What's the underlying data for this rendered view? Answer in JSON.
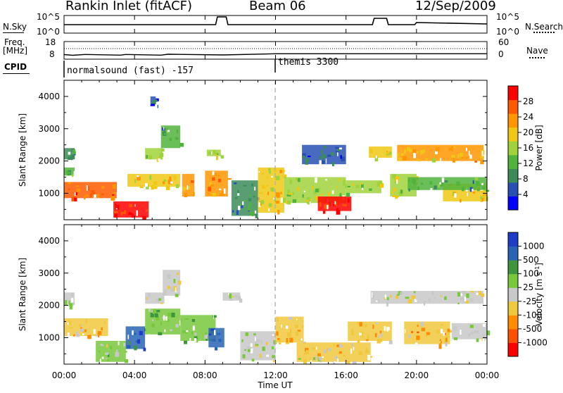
{
  "header": {
    "title": "Rankin Inlet (fitACF)",
    "beam": "Beam 06",
    "date": "12/Sep/2009"
  },
  "top_panel": {
    "left_label": "N.Sky",
    "right_label": "N.Search",
    "left_ticks": [
      "10^5",
      "10^0"
    ],
    "right_ticks": [
      "10^5",
      "10^0"
    ]
  },
  "freq_panel": {
    "label_line1": "Freq.",
    "label_line2": "[MHz]",
    "left_ticks": [
      "18",
      "8"
    ],
    "right_ticks": [
      "60",
      "0"
    ],
    "right_label": "Nave"
  },
  "cpid": {
    "label": "CPID",
    "segments": [
      "normalsound (fast) -157",
      "themis 3300"
    ]
  },
  "axes": {
    "ylabel": "Slant Range [km]",
    "xlabel": "Time UT",
    "x_ticks": [
      "00:00",
      "04:00",
      "08:00",
      "12:00",
      "16:00",
      "20:00",
      "00:00"
    ],
    "y_ticks": [
      "1000",
      "2000",
      "3000",
      "4000"
    ]
  },
  "colors": {
    "power_scale": [
      "#0000ff",
      "#2850b4",
      "#3c8c5a",
      "#50b43c",
      "#a0d23c",
      "#f0c814",
      "#ff9600",
      "#ff5a00",
      "#ff0000"
    ],
    "velocity_scale": [
      "#ff0000",
      "#ff5000",
      "#ff8c00",
      "#f0c83c",
      "#c8c8c8",
      "#78c83c",
      "#3c963c",
      "#2864b4",
      "#1e3cc8"
    ],
    "dashed_line": "#b4b4b4"
  },
  "chart_data": [
    {
      "type": "heatmap",
      "name": "power",
      "ylabel": "Slant Range [km]",
      "xlabel": "Time UT",
      "xlim_hours": [
        0,
        24
      ],
      "ylim_km": [
        180,
        4500
      ],
      "colorbar": {
        "label": "Power [dB]",
        "ticks": [
          "4",
          "8",
          "12",
          "16",
          "20",
          "24",
          "28"
        ],
        "range": [
          0,
          30
        ]
      },
      "regions": [
        {
          "t": [
            0.0,
            0.6
          ],
          "r": [
            2050,
            2400
          ],
          "v": 8
        },
        {
          "t": [
            0.0,
            0.6
          ],
          "r": [
            1550,
            1800
          ],
          "v": 13
        },
        {
          "t": [
            0.0,
            3.0
          ],
          "r": [
            850,
            1350
          ],
          "v": 24
        },
        {
          "t": [
            2.8,
            4.8
          ],
          "r": [
            250,
            750
          ],
          "v": 28
        },
        {
          "t": [
            3.6,
            6.6
          ],
          "r": [
            1200,
            1600
          ],
          "v": 18
        },
        {
          "t": [
            4.6,
            5.6
          ],
          "r": [
            2050,
            2400
          ],
          "v": 16
        },
        {
          "t": [
            5.5,
            6.6
          ],
          "r": [
            2400,
            3100
          ],
          "v": 10
        },
        {
          "t": [
            4.9,
            5.2
          ],
          "r": [
            3700,
            4000
          ],
          "v": 6
        },
        {
          "t": [
            6.7,
            7.4
          ],
          "r": [
            900,
            1600
          ],
          "v": 20
        },
        {
          "t": [
            8.0,
            9.3
          ],
          "r": [
            900,
            1700
          ],
          "v": 22
        },
        {
          "t": [
            8.1,
            8.9
          ],
          "r": [
            2150,
            2350
          ],
          "v": 14
        },
        {
          "t": [
            9.5,
            11.0
          ],
          "r": [
            300,
            1400
          ],
          "v": 8
        },
        {
          "t": [
            11.0,
            12.5
          ],
          "r": [
            400,
            1800
          ],
          "v": 18
        },
        {
          "t": [
            12.5,
            16.0
          ],
          "r": [
            700,
            1500
          ],
          "v": 16
        },
        {
          "t": [
            14.4,
            16.3
          ],
          "r": [
            450,
            900
          ],
          "v": 28
        },
        {
          "t": [
            13.5,
            16.0
          ],
          "r": [
            1900,
            2500
          ],
          "v": 6
        },
        {
          "t": [
            16.0,
            18.0
          ],
          "r": [
            1000,
            1400
          ],
          "v": 14
        },
        {
          "t": [
            17.3,
            18.6
          ],
          "r": [
            2100,
            2450
          ],
          "v": 18
        },
        {
          "t": [
            18.5,
            20.0
          ],
          "r": [
            900,
            1600
          ],
          "v": 16
        },
        {
          "t": [
            18.9,
            23.8
          ],
          "r": [
            2000,
            2500
          ],
          "v": 20
        },
        {
          "t": [
            21.5,
            24.0
          ],
          "r": [
            750,
            1300
          ],
          "v": 18
        },
        {
          "t": [
            19.5,
            24.0
          ],
          "r": [
            1100,
            1500
          ],
          "v": 10
        }
      ]
    },
    {
      "type": "heatmap",
      "name": "velocity",
      "ylabel": "Slant Range [km]",
      "xlabel": "Time UT",
      "xlim_hours": [
        0,
        24
      ],
      "ylim_km": [
        180,
        4500
      ],
      "colorbar": {
        "label": "Velocity [m s^-1]",
        "ticks": [
          "-1000",
          "-500",
          "-100",
          "-25",
          "25",
          "100",
          "500",
          "1000"
        ],
        "range": [
          -1200,
          1200
        ]
      },
      "regions": [
        {
          "t": [
            0.0,
            0.6
          ],
          "r": [
            2000,
            2400
          ],
          "v": 0
        },
        {
          "t": [
            0.0,
            2.5
          ],
          "r": [
            1050,
            1600
          ],
          "v": -300
        },
        {
          "t": [
            1.8,
            3.5
          ],
          "r": [
            250,
            900
          ],
          "v": 150
        },
        {
          "t": [
            3.5,
            4.6
          ],
          "r": [
            650,
            1350
          ],
          "v": 800
        },
        {
          "t": [
            4.6,
            6.6
          ],
          "r": [
            1100,
            1900
          ],
          "v": 300
        },
        {
          "t": [
            4.6,
            5.7
          ],
          "r": [
            2050,
            2400
          ],
          "v": 0
        },
        {
          "t": [
            5.6,
            6.6
          ],
          "r": [
            2300,
            3100
          ],
          "v": 0
        },
        {
          "t": [
            6.6,
            8.6
          ],
          "r": [
            900,
            1700
          ],
          "v": 300
        },
        {
          "t": [
            8.2,
            9.1
          ],
          "r": [
            700,
            1300
          ],
          "v": 900
        },
        {
          "t": [
            9.0,
            10.0
          ],
          "r": [
            2150,
            2400
          ],
          "v": 0
        },
        {
          "t": [
            10.0,
            12.0
          ],
          "r": [
            300,
            1200
          ],
          "v": 100
        },
        {
          "t": [
            12.0,
            13.6
          ],
          "r": [
            850,
            1650
          ],
          "v": -300
        },
        {
          "t": [
            13.2,
            17.4
          ],
          "r": [
            250,
            850
          ],
          "v": -150
        },
        {
          "t": [
            16.1,
            18.6
          ],
          "r": [
            900,
            1500
          ],
          "v": -300
        },
        {
          "t": [
            17.4,
            23.8
          ],
          "r": [
            2050,
            2450
          ],
          "v": 0
        },
        {
          "t": [
            19.3,
            21.9
          ],
          "r": [
            800,
            1500
          ],
          "v": -400
        },
        {
          "t": [
            22.0,
            24.0
          ],
          "r": [
            950,
            1450
          ],
          "v": 120
        }
      ]
    },
    {
      "type": "line",
      "name": "noise",
      "series": [
        {
          "name": "N.Sky",
          "x": [
            0.0,
            8.6,
            8.7,
            9.2,
            9.3,
            17.5,
            17.6,
            18.3,
            18.4,
            19.9,
            20.0,
            24.0
          ],
          "y": [
            2.4,
            2.4,
            4.6,
            4.6,
            2.4,
            2.4,
            4.2,
            4.2,
            2.4,
            2.4,
            3.0,
            2.6
          ]
        }
      ]
    },
    {
      "type": "line",
      "name": "frequency",
      "series": [
        {
          "name": "Freq.",
          "x": [
            0.0,
            0.5,
            1.2,
            3.2,
            3.5,
            5.5,
            5.9,
            9.0,
            12.0,
            24.0
          ],
          "y": [
            10.6,
            10.2,
            10.7,
            10.3,
            10.7,
            10.3,
            10.8,
            10.4,
            11.1,
            11.1
          ]
        }
      ]
    }
  ]
}
